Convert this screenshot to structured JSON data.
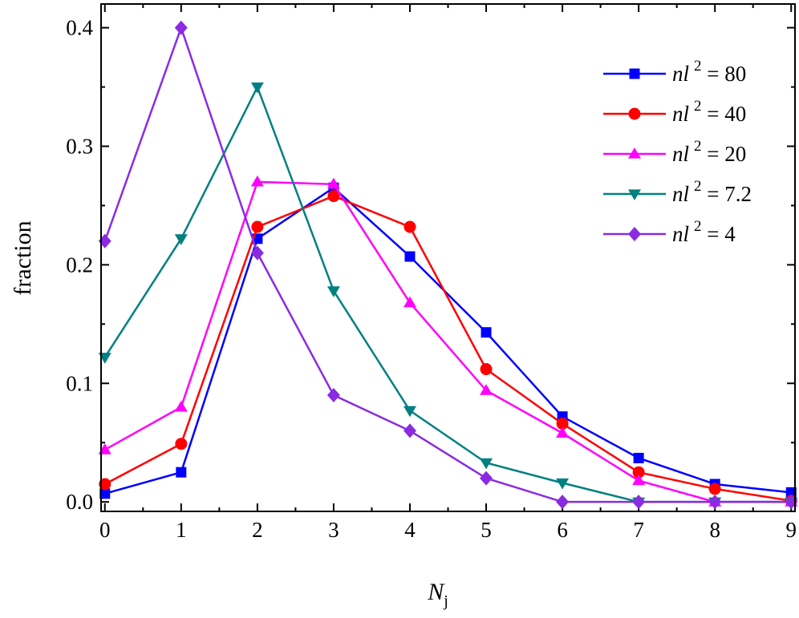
{
  "chart_data": {
    "type": "line",
    "title": "",
    "xlabel": "N",
    "xlabel_sub": "j",
    "ylabel": "fraction",
    "xlim": [
      -0.05,
      9.05
    ],
    "ylim": [
      -0.008,
      0.42
    ],
    "x_ticks": [
      "0",
      "1",
      "2",
      "3",
      "4",
      "5",
      "6",
      "7",
      "8",
      "9"
    ],
    "y_ticks": [
      "0.0",
      "0.1",
      "0.2",
      "0.3",
      "0.4"
    ],
    "grid": false,
    "legend_position": "top-right",
    "x": [
      0,
      1,
      2,
      3,
      4,
      5,
      6,
      7,
      8,
      9
    ],
    "series": [
      {
        "name": "nl 2 = 80",
        "legend": {
          "italic": "nl",
          "sup": "2",
          "rest": " = 80"
        },
        "color": "#0000ff",
        "marker": "square",
        "values": [
          0.007,
          0.025,
          0.222,
          0.265,
          0.207,
          0.143,
          0.072,
          0.037,
          0.015,
          0.008
        ]
      },
      {
        "name": "nl 2 = 40",
        "legend": {
          "italic": "nl",
          "sup": "2",
          "rest": " = 40"
        },
        "color": "#ff0000",
        "marker": "circle",
        "values": [
          0.015,
          0.049,
          0.232,
          0.258,
          0.232,
          0.112,
          0.066,
          0.025,
          0.011,
          0.001
        ]
      },
      {
        "name": "nl 2 = 20",
        "legend": {
          "italic": "nl",
          "sup": "2",
          "rest": " = 20"
        },
        "color": "#ff00ff",
        "marker": "triangle-up",
        "values": [
          0.044,
          0.08,
          0.27,
          0.268,
          0.168,
          0.094,
          0.058,
          0.018,
          0.0,
          0.0
        ]
      },
      {
        "name": "nl 2 = 7.2",
        "legend": {
          "italic": "nl",
          "sup": "2",
          "rest": " = 7.2"
        },
        "color": "#008080",
        "marker": "triangle-down",
        "values": [
          0.122,
          0.222,
          0.35,
          0.178,
          0.077,
          0.033,
          0.016,
          0.0,
          0.0,
          0.0
        ]
      },
      {
        "name": "nl 2 = 4",
        "legend": {
          "italic": "nl",
          "sup": "2",
          "rest": " = 4"
        },
        "color": "#8a2be2",
        "marker": "diamond",
        "values": [
          0.22,
          0.4,
          0.21,
          0.09,
          0.06,
          0.02,
          0.0,
          0.0,
          0.0,
          0.0
        ]
      }
    ]
  }
}
